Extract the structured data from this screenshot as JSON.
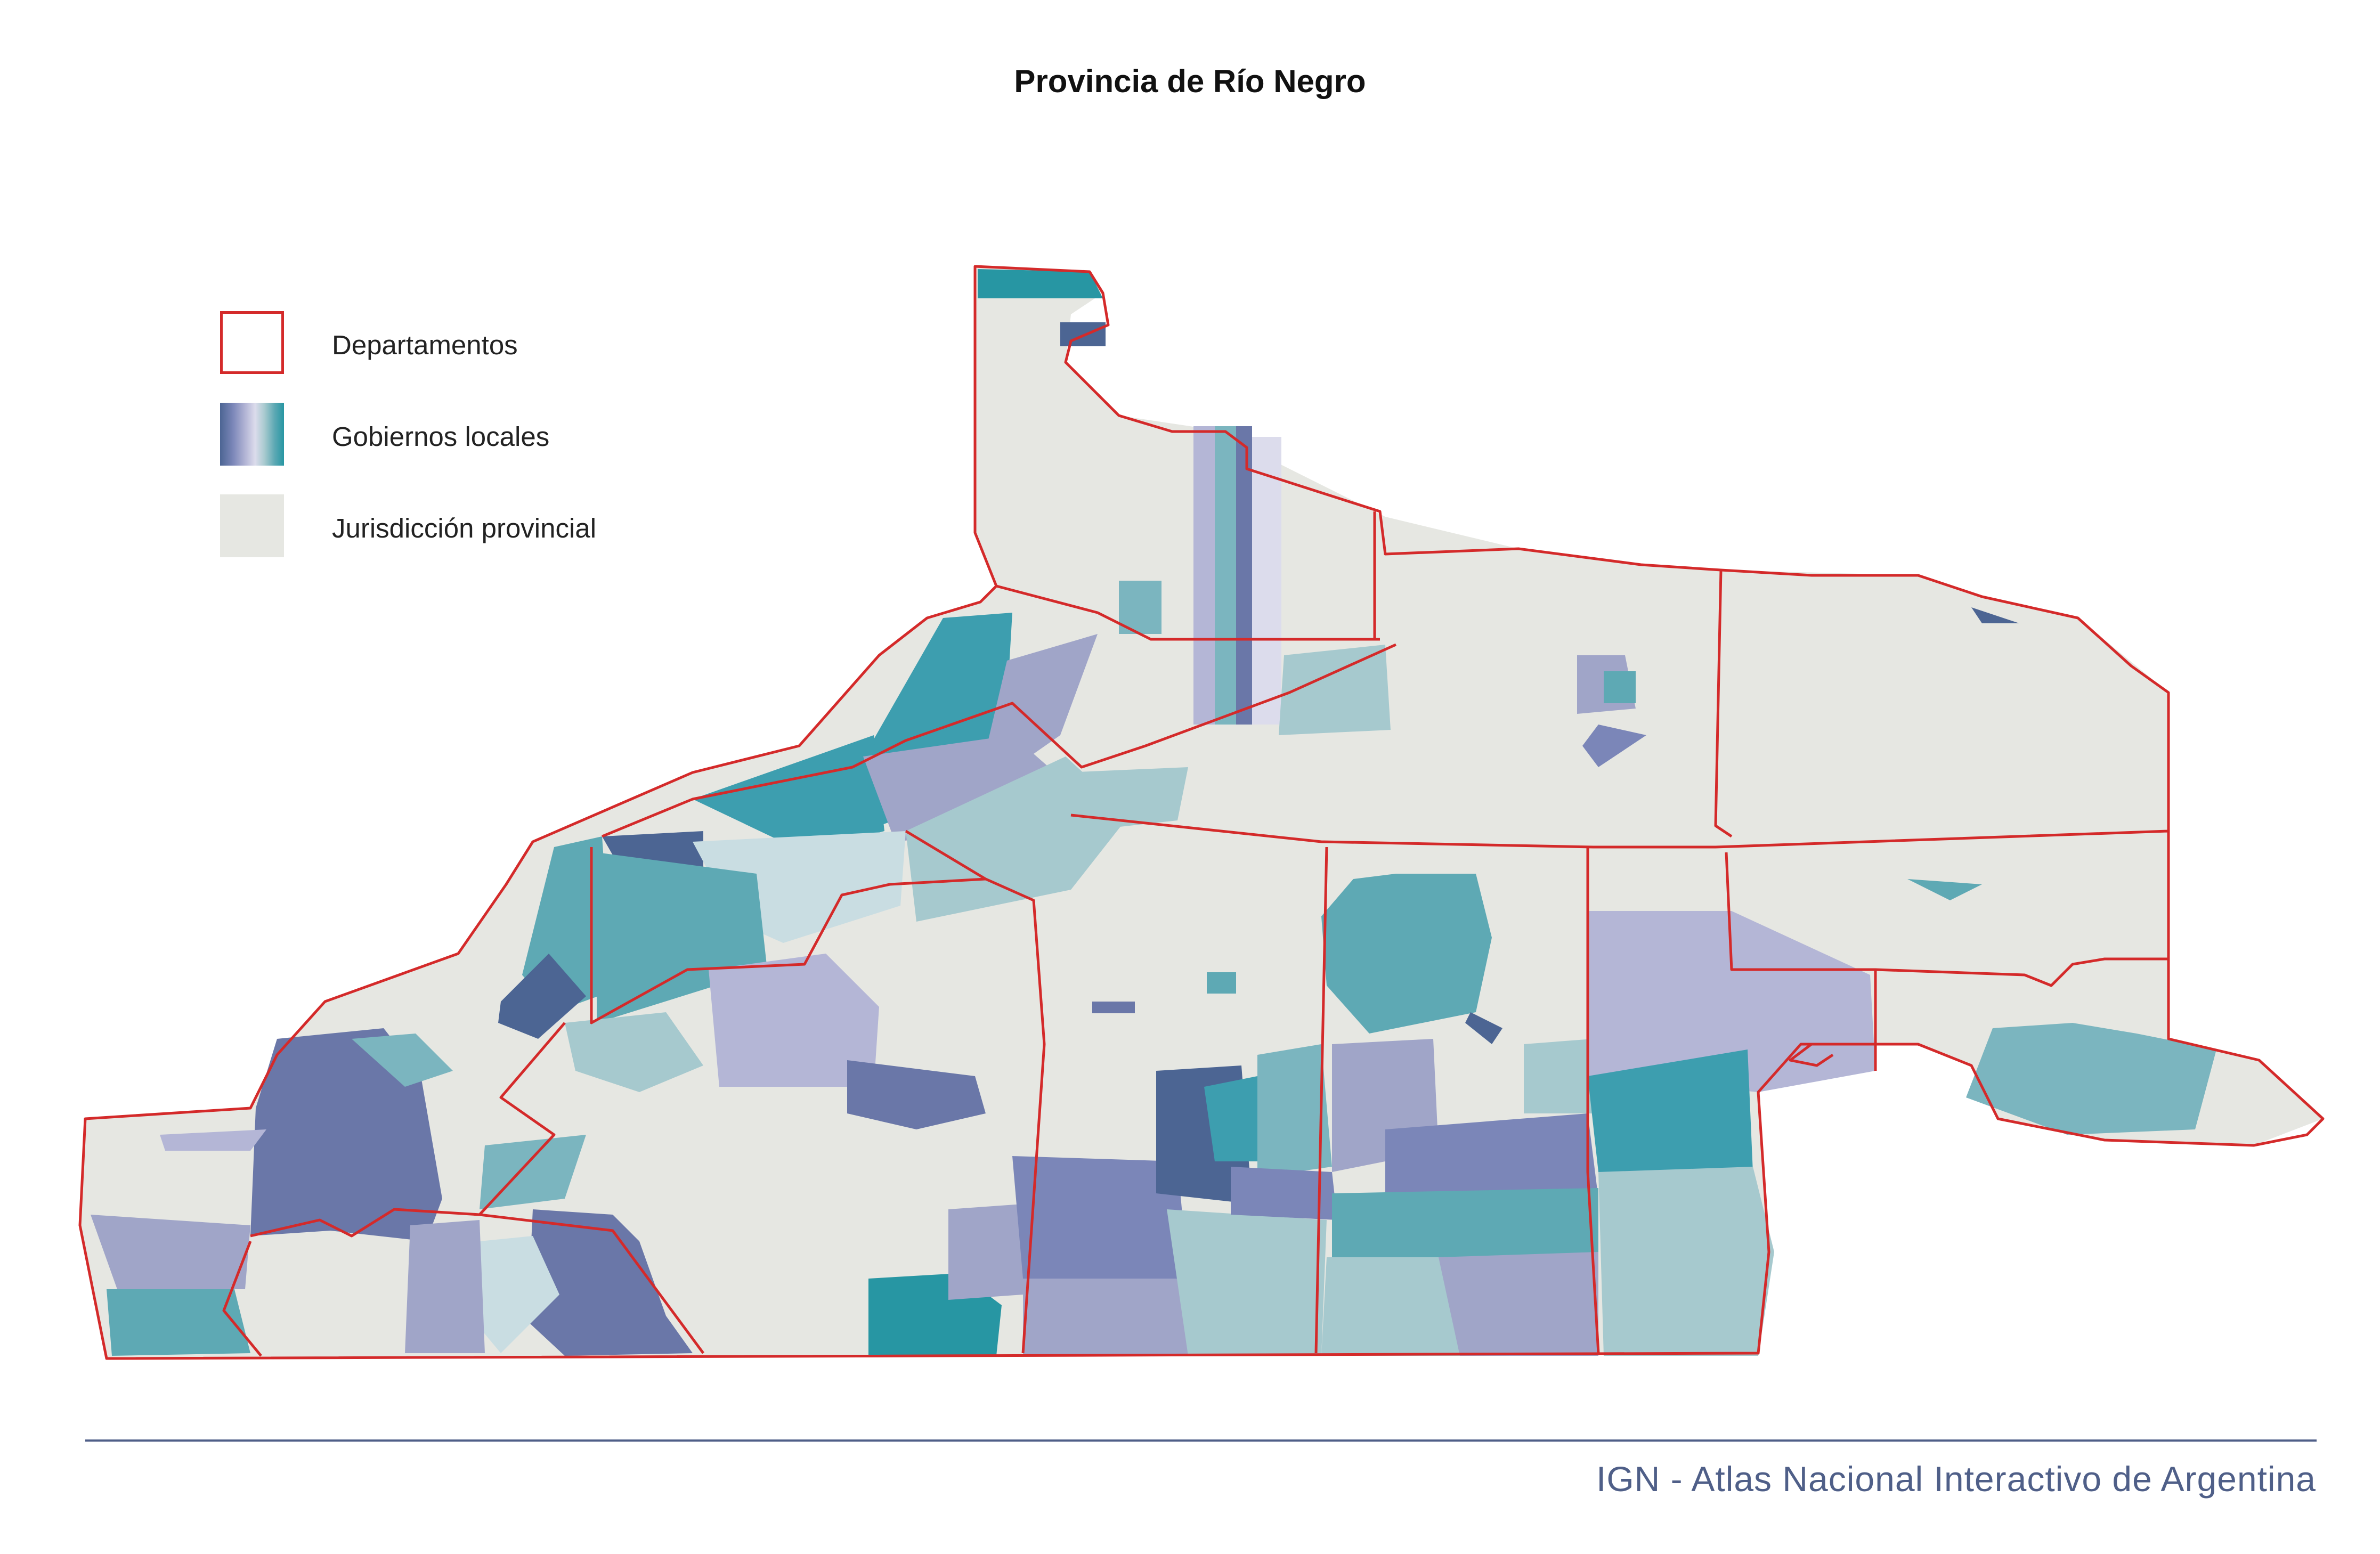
{
  "title": "Provincia de Río Negro",
  "legend": {
    "items": [
      {
        "label": "Departamentos",
        "kind": "outline",
        "color": "#d42a2a"
      },
      {
        "label": "Gobiernos locales",
        "kind": "gradient",
        "colors": [
          "#4c6593",
          "#7b86b8",
          "#b4b6d6",
          "#dcdcec",
          "#a6c9ce",
          "#5ea9b4",
          "#2796a3"
        ]
      },
      {
        "label": "Jurisdicción provincial",
        "kind": "fill",
        "color": "#e6e7e2"
      }
    ]
  },
  "colors": {
    "department_border": "#d42a2a",
    "provincial": "#e6e7e2",
    "local_palette": [
      "#4c6593",
      "#6a77a8",
      "#7b86b8",
      "#a0a5c8",
      "#b4b6d6",
      "#dcdcec",
      "#c9dde2",
      "#a6c9ce",
      "#7bb5bf",
      "#5ea9b4",
      "#3d9eaf",
      "#2796a3"
    ]
  },
  "source": "IGN - Atlas Nacional Interactivo de Argentina"
}
